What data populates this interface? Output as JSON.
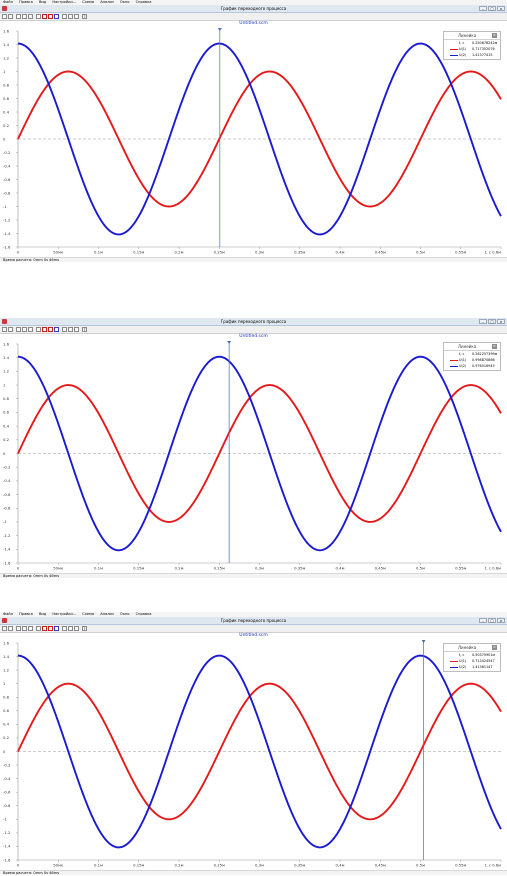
{
  "menu": [
    "Файл",
    "Правка",
    "Вид",
    "Настройки...",
    "Схема",
    "Анализ",
    "Окно",
    "Справка"
  ],
  "window_title": "График переходного процесса",
  "window_buttons": [
    "–",
    "□",
    "×"
  ],
  "toolbar_help": "?",
  "file_title": "Untitled.scm",
  "status_text": "Время расчета: 0mm 0s 46ms",
  "ruler": {
    "title": "Линейка",
    "close": "×",
    "t_label": "t, с",
    "u1_label": "U(1)",
    "u2_label": "U(2)"
  },
  "panels": [
    {
      "t": "0.250678242м",
      "u1": "0.717352076",
      "u2": "1.41377415"
    },
    {
      "t": "0.262257399м",
      "u1": "0.998870866",
      "u2": "0.976516945"
    },
    {
      "t": "0.50375901м",
      "u1": "0.713424547",
      "u2": "1.41361147"
    }
  ],
  "chart_data": {
    "type": "line",
    "xlabel": "t, с",
    "xlim": [
      0,
      0.6
    ],
    "ylim": [
      -1.6,
      1.6
    ],
    "x_ticks": [
      "0",
      "50мк",
      "0.1м",
      "0.15м",
      "0.2м",
      "0.25м",
      "0.3м",
      "0.35м",
      "0.4м",
      "0.45м",
      "0.5м",
      "0.55м",
      "t, с 0.6м"
    ],
    "y_ticks": [
      "1.6",
      "1.4",
      "1.2",
      "1",
      "0.8",
      "0.6",
      "0.4",
      "0.2",
      "0",
      "-0.2",
      "-0.4",
      "-0.6",
      "-0.8",
      "-1",
      "-1.2",
      "-1.4",
      "-1.6"
    ],
    "series": [
      {
        "name": "U(1)",
        "color": "#e41a1a",
        "amplitude": 1.0,
        "period_ms": 0.25,
        "phase_deg": 0
      },
      {
        "name": "U(2)",
        "color": "#1a1ad0",
        "amplitude": 1.414,
        "period_ms": 0.25,
        "phase_deg": 90
      }
    ],
    "cursor_t_ms": [
      0.2507,
      0.2623,
      0.5038
    ],
    "grid": false,
    "zero_line": "dashed"
  }
}
